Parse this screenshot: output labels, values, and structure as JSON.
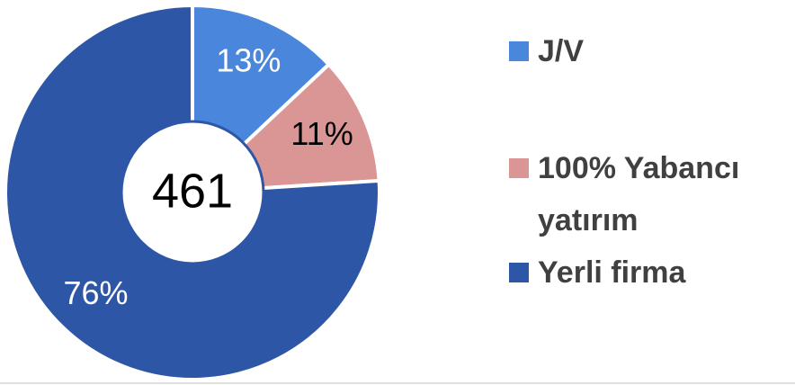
{
  "chart_data": {
    "type": "donut",
    "total": 461,
    "categories": [
      "J/V",
      "100% Yabancı yatırım",
      "Yerli firma"
    ],
    "values": [
      13,
      11,
      76
    ],
    "value_labels": [
      "13%",
      "11%",
      "76%"
    ],
    "colors": [
      "#4a86dc",
      "#da9694",
      "#2e56a6"
    ],
    "label_colors": [
      "#ffffff",
      "#000000",
      "#ffffff"
    ],
    "legend": "right"
  }
}
